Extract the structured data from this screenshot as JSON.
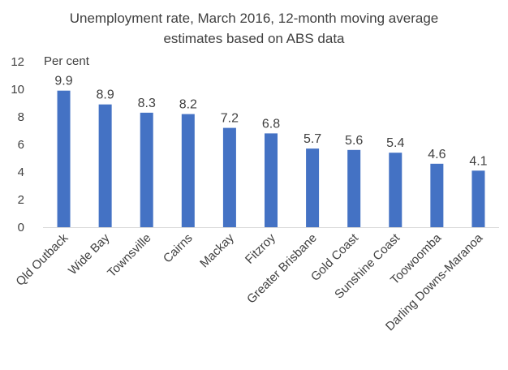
{
  "chart_data": {
    "type": "bar",
    "title_line1": "Unemployment rate, March 2016, 12-month moving average",
    "title_line2": "estimates based on ABS data",
    "ylabel": "Per cent",
    "xlabel": "",
    "ylim": [
      0,
      12
    ],
    "yticks": [
      0,
      2,
      4,
      6,
      8,
      10,
      12
    ],
    "grid": false,
    "categories": [
      "Qld Outback",
      "Wide Bay",
      "Townsville",
      "Cairns",
      "Mackay",
      "Fitzroy",
      "Greater Brisbane",
      "Gold Coast",
      "Sunshine Coast",
      "Toowoomba",
      "Darling Downs-Maranoa"
    ],
    "values": [
      9.9,
      8.9,
      8.3,
      8.2,
      7.2,
      6.8,
      5.7,
      5.6,
      5.4,
      4.6,
      4.1
    ],
    "value_labels": [
      "9.9",
      "8.9",
      "8.3",
      "8.2",
      "7.2",
      "6.8",
      "5.7",
      "5.6",
      "5.4",
      "4.6",
      "4.1"
    ],
    "bar_color": "#4472C4"
  }
}
